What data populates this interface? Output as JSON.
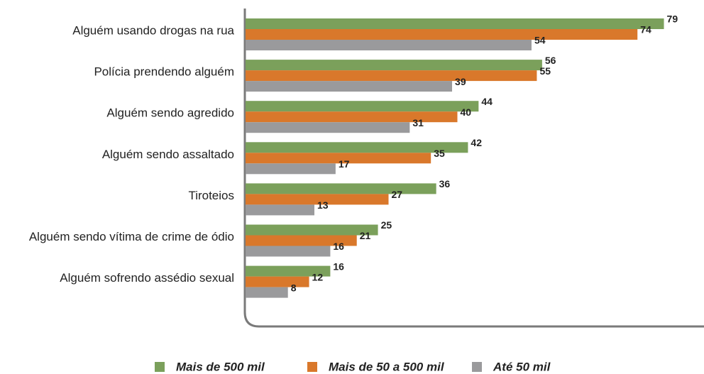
{
  "chart_data": {
    "type": "hbar",
    "categories": [
      "Alguém usando drogas na rua",
      "Polícia prendendo alguém",
      "Alguém sendo agredido",
      "Alguém sendo assaltado",
      "Tiroteios",
      "Alguém sendo vítima de crime de ódio",
      "Alguém sofrendo assédio sexual"
    ],
    "series": [
      {
        "name": "Mais de 500 mil",
        "color": "#7ba05b",
        "values": [
          79,
          56,
          44,
          42,
          36,
          25,
          16
        ]
      },
      {
        "name": "Mais de 50 a 500 mil",
        "color": "#d9782b",
        "values": [
          74,
          55,
          40,
          35,
          27,
          21,
          12
        ]
      },
      {
        "name": "Até 50 mil",
        "color": "#9a9a9c",
        "values": [
          54,
          39,
          31,
          17,
          13,
          16,
          8
        ]
      }
    ],
    "xlim": [
      0,
      80
    ]
  }
}
